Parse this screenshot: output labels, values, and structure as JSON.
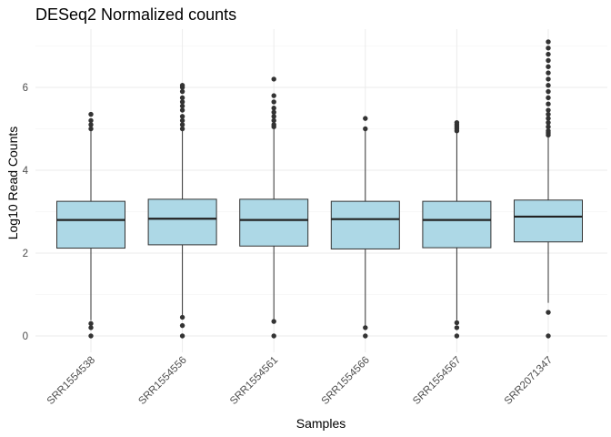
{
  "chart_data": {
    "type": "box",
    "title": "DESeq2 Normalized counts",
    "xlabel": "Samples",
    "ylabel": "Log10 Read Counts",
    "ylim": [
      -0.15,
      7.3
    ],
    "yticks": [
      0,
      2,
      4,
      6
    ],
    "grid": true,
    "legend": "none",
    "box_fill": "#ADD8E6",
    "box_stroke": "#333333",
    "point_color": "#333333",
    "categories": [
      "SRR1554538",
      "SRR1554556",
      "SRR1554561",
      "SRR1554566",
      "SRR1554567",
      "SRR2071347"
    ],
    "series": [
      {
        "category": "SRR1554538",
        "q1": 2.12,
        "median": 2.8,
        "q3": 3.25,
        "whisker_low": 0.38,
        "whisker_high": 4.95,
        "outliers": [
          0,
          0.2,
          0.3,
          5.0,
          5.1,
          5.2,
          5.35
        ]
      },
      {
        "category": "SRR1554556",
        "q1": 2.2,
        "median": 2.83,
        "q3": 3.3,
        "whisker_low": 0.5,
        "whisker_high": 4.95,
        "outliers": [
          0,
          0.25,
          0.45,
          5.0,
          5.1,
          5.2,
          5.3,
          5.45,
          5.55,
          5.65,
          5.75,
          5.9,
          6.0,
          6.05
        ]
      },
      {
        "category": "SRR1554561",
        "q1": 2.17,
        "median": 2.8,
        "q3": 3.3,
        "whisker_low": 0.4,
        "whisker_high": 5.0,
        "outliers": [
          0,
          0.35,
          5.05,
          5.1,
          5.2,
          5.3,
          5.4,
          5.5,
          5.65,
          5.8,
          6.2
        ]
      },
      {
        "category": "SRR1554566",
        "q1": 2.1,
        "median": 2.82,
        "q3": 3.25,
        "whisker_low": 0.25,
        "whisker_high": 4.95,
        "outliers": [
          0,
          0.2,
          5.0,
          5.25
        ]
      },
      {
        "category": "SRR1554567",
        "q1": 2.13,
        "median": 2.8,
        "q3": 3.25,
        "whisker_low": 0.38,
        "whisker_high": 4.95,
        "outliers": [
          0,
          0.2,
          0.32,
          4.95,
          5.0,
          5.05,
          5.1,
          5.15
        ]
      },
      {
        "category": "SRR2071347",
        "q1": 2.27,
        "median": 2.88,
        "q3": 3.28,
        "whisker_low": 0.8,
        "whisker_high": 4.8,
        "outliers": [
          0,
          0.57,
          4.85,
          4.9,
          4.95,
          5.05,
          5.15,
          5.25,
          5.35,
          5.45,
          5.6,
          5.75,
          5.9,
          6.05,
          6.2,
          6.35,
          6.5,
          6.65,
          6.8,
          6.95,
          7.1
        ]
      }
    ]
  }
}
